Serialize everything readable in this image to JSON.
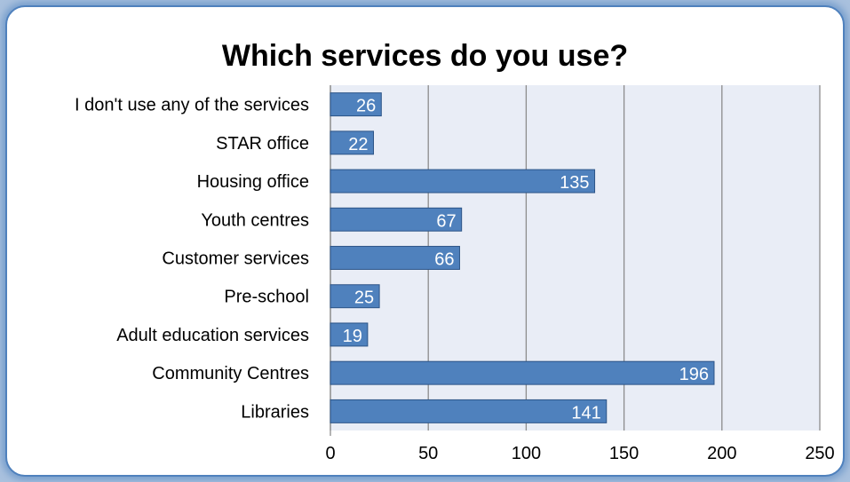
{
  "chart_data": {
    "type": "bar",
    "orientation": "horizontal",
    "title": "Which services do you use?",
    "categories": [
      "I don't use any of the services",
      "STAR office",
      "Housing office",
      "Youth centres",
      "Customer services",
      "Pre-school",
      "Adult education services",
      "Community Centres",
      "Libraries"
    ],
    "values": [
      26,
      22,
      135,
      67,
      66,
      25,
      19,
      196,
      141
    ],
    "xlim": [
      0,
      250
    ],
    "xticks": [
      0,
      50,
      100,
      150,
      200,
      250
    ],
    "grid": true,
    "legend": "none",
    "colors": {
      "bar": "#4f81bd",
      "bar_border": "#2c5487",
      "plot_bg": "#e9edf6",
      "gridline": "#8c8c8c"
    }
  }
}
